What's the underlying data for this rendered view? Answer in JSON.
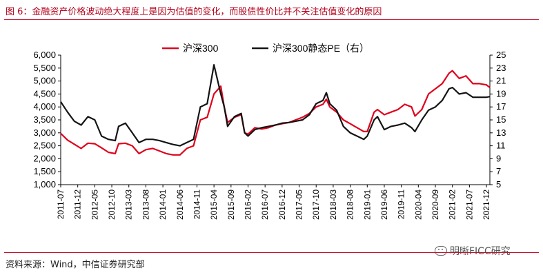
{
  "caption": "图 6：金融资产价格波动绝大程度上是因为估值的变化，而股债性价比并不关注估值变化的原因",
  "source": "资料来源：Wind，中信证券研究部",
  "watermark": "明晰FICC研究",
  "watermark_icon": "wechat-icon",
  "chart_data": {
    "type": "line",
    "legend_placement": "top-center",
    "grid": false,
    "x_tick_labels": [
      "2011-07",
      "2011-12",
      "2012-05",
      "2012-10",
      "2013-03",
      "2013-08",
      "2014-01",
      "2014-06",
      "2014-11",
      "2015-04",
      "2015-09",
      "2016-02",
      "2016-07",
      "2016-12",
      "2017-05",
      "2017-10",
      "2018-03",
      "2018-08",
      "2019-01",
      "2019-06",
      "2019-11",
      "2020-04",
      "2020-09",
      "2021-02",
      "2021-07",
      "2021-12"
    ],
    "y_left": {
      "min": 1000,
      "max": 6000,
      "ticks": [
        "1,000",
        "1,500",
        "2,000",
        "2,500",
        "3,000",
        "3,500",
        "4,000",
        "4,500",
        "5,000",
        "5,500",
        "6,000"
      ]
    },
    "y_right": {
      "min": 5,
      "max": 25,
      "ticks": [
        "5",
        "7",
        "9",
        "11",
        "13",
        "15",
        "17",
        "19",
        "21",
        "23",
        "25"
      ]
    },
    "series": [
      {
        "name": "沪深300",
        "axis": "left",
        "color": "#e0001b",
        "x": [
          "2011-07",
          "2011-09",
          "2011-11",
          "2012-01",
          "2012-03",
          "2012-05",
          "2012-07",
          "2012-09",
          "2012-11",
          "2012-12",
          "2013-02",
          "2013-04",
          "2013-06",
          "2013-08",
          "2013-10",
          "2013-12",
          "2014-02",
          "2014-04",
          "2014-06",
          "2014-08",
          "2014-10",
          "2014-12",
          "2015-02",
          "2015-04",
          "2015-06",
          "2015-07",
          "2015-08",
          "2015-10",
          "2015-12",
          "2016-01",
          "2016-02",
          "2016-04",
          "2016-06",
          "2016-08",
          "2016-10",
          "2016-12",
          "2017-02",
          "2017-04",
          "2017-06",
          "2017-08",
          "2017-10",
          "2017-12",
          "2018-01",
          "2018-02",
          "2018-04",
          "2018-06",
          "2018-08",
          "2018-10",
          "2018-12",
          "2019-01",
          "2019-03",
          "2019-04",
          "2019-06",
          "2019-08",
          "2019-10",
          "2019-12",
          "2020-02",
          "2020-03",
          "2020-05",
          "2020-07",
          "2020-09",
          "2020-11",
          "2021-01",
          "2021-02",
          "2021-04",
          "2021-06",
          "2021-08",
          "2021-10",
          "2021-12",
          "2022-01"
        ],
        "values": [
          2980,
          2720,
          2560,
          2400,
          2600,
          2580,
          2420,
          2250,
          2200,
          2580,
          2600,
          2500,
          2200,
          2350,
          2400,
          2300,
          2200,
          2150,
          2150,
          2400,
          2500,
          3500,
          3600,
          4500,
          4800,
          4000,
          3400,
          3600,
          3700,
          3000,
          2950,
          3200,
          3150,
          3200,
          3300,
          3350,
          3400,
          3500,
          3600,
          3750,
          4000,
          4100,
          4300,
          4000,
          3800,
          3500,
          3350,
          3200,
          3050,
          3050,
          3800,
          3900,
          3700,
          3800,
          3900,
          4100,
          4000,
          3650,
          3900,
          4500,
          4700,
          4900,
          5300,
          5400,
          5100,
          5200,
          4900,
          4900,
          4850,
          4750
        ]
      },
      {
        "name": "沪深300静态PE（右）",
        "axis": "right",
        "color": "#141414",
        "x": [
          "2011-07",
          "2011-09",
          "2011-11",
          "2012-01",
          "2012-03",
          "2012-05",
          "2012-07",
          "2012-09",
          "2012-11",
          "2012-12",
          "2013-02",
          "2013-04",
          "2013-06",
          "2013-08",
          "2013-10",
          "2013-12",
          "2014-02",
          "2014-04",
          "2014-06",
          "2014-08",
          "2014-10",
          "2014-12",
          "2015-02",
          "2015-04",
          "2015-06",
          "2015-07",
          "2015-08",
          "2015-10",
          "2015-12",
          "2016-01",
          "2016-02",
          "2016-04",
          "2016-06",
          "2016-08",
          "2016-10",
          "2016-12",
          "2017-02",
          "2017-04",
          "2017-06",
          "2017-08",
          "2017-10",
          "2017-12",
          "2018-01",
          "2018-02",
          "2018-04",
          "2018-06",
          "2018-08",
          "2018-10",
          "2018-12",
          "2019-01",
          "2019-03",
          "2019-04",
          "2019-06",
          "2019-08",
          "2019-10",
          "2019-12",
          "2020-02",
          "2020-03",
          "2020-05",
          "2020-07",
          "2020-09",
          "2020-11",
          "2021-01",
          "2021-02",
          "2021-04",
          "2021-06",
          "2021-08",
          "2021-10",
          "2021-12",
          "2022-01"
        ],
        "values": [
          17.8,
          16.2,
          14.8,
          14.2,
          15.5,
          15.0,
          12.5,
          12.0,
          11.8,
          14.0,
          14.5,
          13.0,
          11.5,
          12.0,
          12.0,
          11.8,
          11.5,
          11.2,
          11.0,
          11.5,
          12.0,
          17.0,
          17.5,
          23.5,
          19.0,
          17.0,
          14.0,
          15.5,
          16.0,
          13.0,
          12.5,
          13.5,
          13.8,
          14.0,
          14.2,
          14.5,
          14.6,
          14.8,
          15.0,
          15.8,
          17.5,
          18.0,
          19.2,
          17.5,
          16.5,
          14.0,
          13.0,
          12.5,
          12.0,
          12.5,
          15.0,
          15.5,
          13.5,
          14.0,
          14.2,
          14.5,
          13.8,
          13.2,
          15.0,
          16.5,
          17.0,
          18.0,
          19.8,
          20.0,
          19.0,
          19.2,
          18.5,
          18.5,
          18.5,
          18.6
        ]
      }
    ]
  }
}
